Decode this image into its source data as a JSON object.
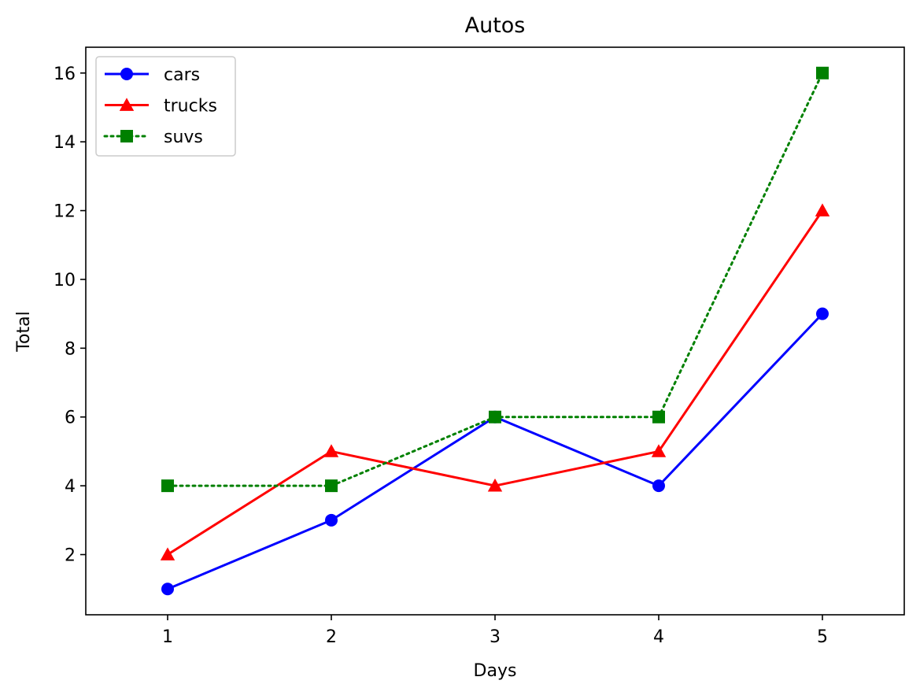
{
  "chart_data": {
    "type": "line",
    "title": "Autos",
    "xlabel": "Days",
    "ylabel": "Total",
    "x": [
      1,
      2,
      3,
      4,
      5
    ],
    "xlim": [
      0.5,
      5.5
    ],
    "ylim": [
      0.25,
      16.75
    ],
    "xticks": [
      1,
      2,
      3,
      4,
      5
    ],
    "yticks": [
      2,
      4,
      6,
      8,
      10,
      12,
      14,
      16
    ],
    "grid": false,
    "legend_position": "top-left",
    "series": [
      {
        "name": "cars",
        "values": [
          1,
          3,
          6,
          4,
          9
        ],
        "color": "#0000ff",
        "marker": "circle",
        "linestyle": "solid"
      },
      {
        "name": "trucks",
        "values": [
          2,
          5,
          4,
          5,
          12
        ],
        "color": "#ff0000",
        "marker": "triangle",
        "linestyle": "solid"
      },
      {
        "name": "suvs",
        "values": [
          4,
          4,
          6,
          6,
          16
        ],
        "color": "#008000",
        "marker": "square",
        "linestyle": "dotted"
      }
    ]
  }
}
